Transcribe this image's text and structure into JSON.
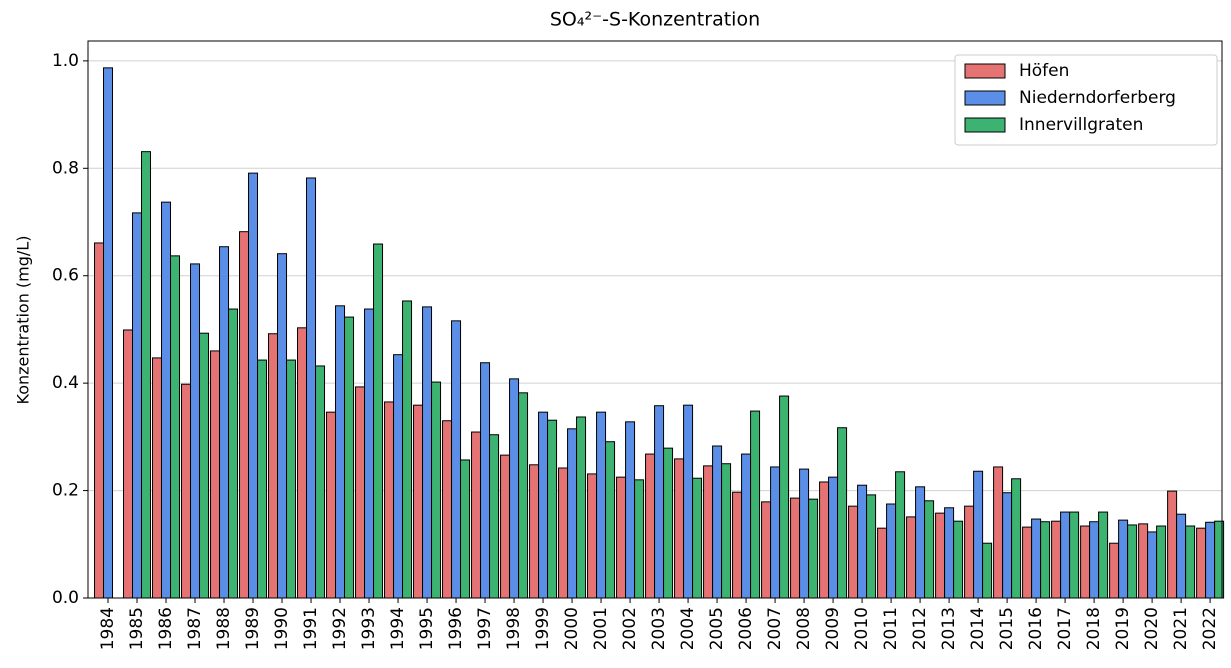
{
  "chart_data": {
    "type": "bar",
    "title": "SO₄²⁻-S-Konzentration",
    "y_label": "Konzentration (mg/L)",
    "categories": [
      "1984",
      "1985",
      "1986",
      "1987",
      "1988",
      "1989",
      "1990",
      "1991",
      "1992",
      "1993",
      "1994",
      "1995",
      "1996",
      "1997",
      "1998",
      "1999",
      "2000",
      "2001",
      "2002",
      "2003",
      "2004",
      "2005",
      "2006",
      "2007",
      "2008",
      "2009",
      "2010",
      "2011",
      "2012",
      "2013",
      "2014",
      "2015",
      "2016",
      "2017",
      "2018",
      "2019",
      "2020",
      "2021",
      "2022"
    ],
    "series": [
      {
        "name": "Höfen",
        "color": "#e57373",
        "values": [
          0.661,
          0.499,
          0.447,
          0.398,
          0.46,
          0.682,
          0.492,
          0.503,
          0.346,
          0.393,
          0.365,
          0.359,
          0.33,
          0.309,
          0.266,
          0.248,
          0.242,
          0.231,
          0.225,
          0.268,
          0.259,
          0.246,
          0.197,
          0.179,
          0.186,
          0.216,
          0.171,
          0.13,
          0.151,
          0.158,
          0.171,
          0.244,
          0.132,
          0.143,
          0.134,
          0.102,
          0.138,
          0.199,
          0.13
        ]
      },
      {
        "name": "Niederndorferberg",
        "color": "#5b8ee6",
        "values": [
          0.987,
          0.717,
          0.737,
          0.622,
          0.654,
          0.791,
          0.641,
          0.782,
          0.544,
          0.538,
          0.453,
          0.542,
          0.516,
          0.438,
          0.408,
          0.346,
          0.315,
          0.346,
          0.328,
          0.358,
          0.359,
          0.283,
          0.268,
          0.244,
          0.24,
          0.225,
          0.21,
          0.175,
          0.207,
          0.168,
          0.236,
          0.196,
          0.147,
          0.16,
          0.142,
          0.145,
          0.123,
          0.156,
          0.141
        ]
      },
      {
        "name": "Innervillgraten",
        "color": "#3cb371",
        "values": [
          null,
          0.831,
          0.637,
          0.493,
          0.538,
          0.443,
          0.443,
          0.432,
          0.523,
          0.659,
          0.553,
          0.402,
          0.257,
          0.304,
          0.382,
          0.331,
          0.337,
          0.291,
          0.22,
          0.279,
          0.223,
          0.25,
          0.348,
          0.376,
          0.184,
          0.317,
          0.192,
          0.235,
          0.181,
          0.143,
          0.102,
          0.222,
          0.142,
          0.16,
          0.16,
          0.136,
          0.134,
          0.134,
          0.143
        ]
      }
    ],
    "ylim": [
      0,
      1.037
    ],
    "yticks": [
      {
        "value": 0,
        "label": "0.0"
      },
      0.2,
      0.4,
      0.6,
      0.8,
      {
        "value": 1,
        "label": "1.0"
      }
    ],
    "grid": true,
    "legend": "upper right"
  }
}
